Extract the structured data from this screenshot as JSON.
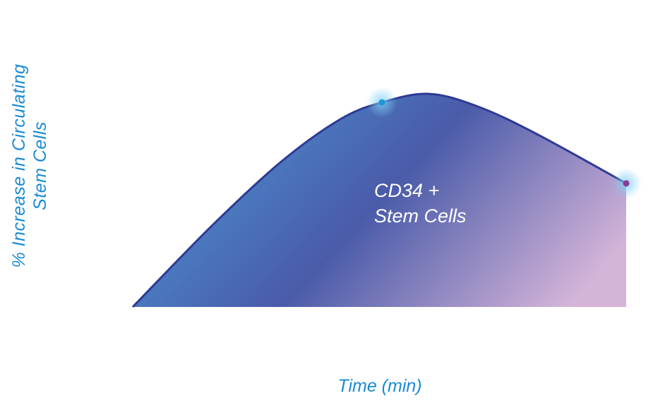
{
  "chart_data": {
    "type": "area",
    "title": "",
    "xlabel": "Time (min)",
    "ylabel_lines": [
      "% Increase in Circulating",
      "Stem Cells"
    ],
    "series": [
      {
        "name_lines": [
          "CD34 +",
          "Stem Cells"
        ],
        "x": [
          0,
          16,
          30,
          42,
          50.5,
          60,
          70,
          82,
          100
        ],
        "y": [
          0,
          38,
          68,
          88,
          96,
          100,
          94,
          81,
          58
        ]
      }
    ],
    "markers": [
      {
        "x": 50.5,
        "y": 96,
        "color": "#1a9ad8"
      },
      {
        "x": 100,
        "y": 58,
        "color": "#8a3a9a"
      }
    ],
    "xlim": [
      0,
      100
    ],
    "ylim": [
      0,
      100
    ],
    "grid": false,
    "gradient_colors": [
      "#4a8fd0",
      "#4a5aa8",
      "#c9a8cf"
    ],
    "line_color": "#2e3a94"
  }
}
